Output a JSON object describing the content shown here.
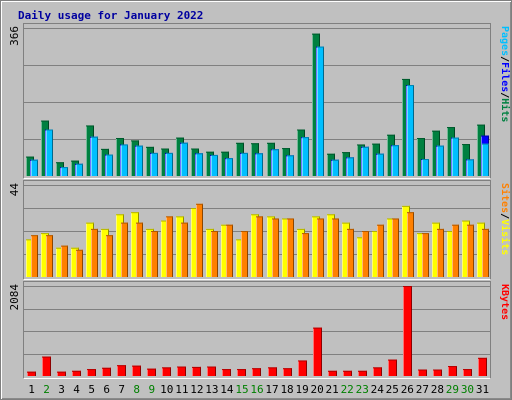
{
  "chart_data": {
    "type": "bar",
    "title": "Daily usage for January 2022",
    "categories": [
      "1",
      "2",
      "3",
      "4",
      "5",
      "6",
      "7",
      "8",
      "9",
      "10",
      "11",
      "12",
      "13",
      "14",
      "15",
      "16",
      "17",
      "18",
      "19",
      "20",
      "21",
      "22",
      "23",
      "24",
      "25",
      "26",
      "27",
      "28",
      "29",
      "30",
      "31"
    ],
    "weekend_days": [
      "2",
      "8",
      "9",
      "15",
      "16",
      "22",
      "23",
      "29",
      "30"
    ],
    "panels": [
      {
        "ylabel_max": "366",
        "ymax": 366,
        "legend": [
          "Pages",
          "/",
          "Files",
          "/",
          "Hits"
        ],
        "series": [
          {
            "name": "Hits",
            "color": "#008040",
            "values": [
              48,
              137,
              34,
              38,
              125,
              67,
              94,
              88,
              72,
              68,
              95,
              68,
              60,
              60,
              82,
              81,
              82,
              69,
              115,
              352,
              55,
              59,
              78,
              80,
              102,
              240,
              94,
              112,
              121,
              79,
              127
            ]
          },
          {
            "name": "Files",
            "color": "#0000ff",
            "values": [
              40,
              115,
              22,
              30,
              97,
              53,
              78,
              75,
              57,
              57,
              82,
              56,
              52,
              44,
              57,
              56,
              66,
              51,
              96,
              320,
              40,
              46,
              72,
              55,
              76,
              225,
              42,
              75,
              95,
              41,
              100
            ]
          },
          {
            "name": "Pages",
            "color": "#00bfff",
            "values": [
              40,
              115,
              22,
              30,
              97,
              53,
              78,
              75,
              57,
              57,
              82,
              56,
              52,
              44,
              57,
              56,
              66,
              51,
              96,
              320,
              40,
              46,
              72,
              55,
              76,
              225,
              42,
              75,
              95,
              41,
              80
            ]
          }
        ]
      },
      {
        "ylabel_max": "44",
        "ymax": 44,
        "legend": [
          "Sites",
          "/",
          "Visits"
        ],
        "series": [
          {
            "name": "Visits",
            "color": "#ffff00",
            "values": [
              18,
              21,
              14,
              14,
              26,
              23,
              30,
              31,
              23,
              27,
              29,
              33,
              23,
              25,
              18,
              30,
              29,
              28,
              23,
              29,
              30,
              26,
              19,
              22,
              28,
              34,
              21,
              26,
              22,
              27,
              26
            ]
          },
          {
            "name": "Sites",
            "color": "#ff8000",
            "values": [
              20,
              20,
              15,
              13,
              23,
              20,
              26,
              26,
              22,
              29,
              26,
              35,
              22,
              25,
              22,
              29,
              28,
              28,
              21,
              28,
              28,
              23,
              22,
              25,
              28,
              31,
              21,
              23,
              25,
              25,
              23
            ]
          }
        ]
      },
      {
        "ylabel_max": "2084",
        "ymax": 2084,
        "legend": [
          "KBytes"
        ],
        "series": [
          {
            "name": "KBytes",
            "color": "#ff0000",
            "values": [
              100,
              450,
              100,
              120,
              160,
              190,
              250,
              240,
              170,
              200,
              220,
              210,
              220,
              160,
              160,
              180,
              200,
              180,
              360,
              1120,
              120,
              120,
              120,
              200,
              380,
              2084,
              150,
              150,
              230,
              160,
              420
            ]
          }
        ]
      }
    ]
  }
}
